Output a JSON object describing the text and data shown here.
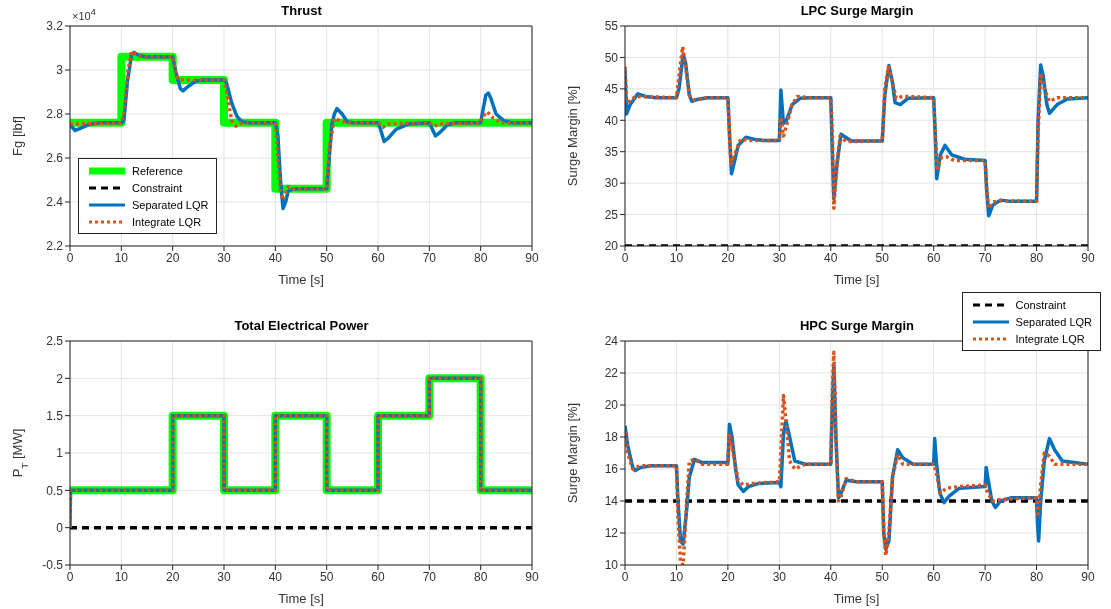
{
  "chart_data": [
    {
      "type": "line",
      "title": "Thrust",
      "xlabel": "Time [s]",
      "ylabel": "Fg   [lbf]",
      "annotations": [
        "×10$^{4}$"
      ],
      "xlim": [
        0,
        90
      ],
      "xticks": [
        0,
        10,
        20,
        30,
        40,
        50,
        60,
        70,
        80,
        90
      ],
      "ylim": [
        2.2,
        3.2
      ],
      "yticks": [
        2.2,
        2.4,
        2.6,
        2.8,
        3,
        3.2
      ],
      "grid": true,
      "legend": "bottom left",
      "series": [
        {
          "name": "Reference",
          "color": "#00ff00",
          "line_style": "solid",
          "x": [
            0,
            10,
            10,
            20,
            20,
            30,
            30,
            40,
            40,
            50,
            50,
            90
          ],
          "values": [
            2.76,
            2.76,
            3.06,
            3.06,
            2.955,
            2.955,
            2.76,
            2.76,
            2.46,
            2.46,
            2.76,
            2.76
          ]
        },
        {
          "name": "Constraint",
          "color": "#000000",
          "line_style": "dashed"
        },
        {
          "name": "Separated LQR",
          "color": "#0072bd",
          "line_style": "solid",
          "x": [
            0,
            1,
            2,
            4,
            6,
            10,
            10.5,
            11.2,
            12,
            12.5,
            13.5,
            15,
            20,
            20.5,
            21.5,
            22,
            23,
            24.5,
            26,
            30,
            30.5,
            31.5,
            32.5,
            33.5,
            35,
            40,
            40.5,
            41,
            41.5,
            42,
            42.5,
            43.5,
            50,
            50.5,
            51,
            51.5,
            52,
            53,
            54,
            55,
            60,
            60.5,
            61.2,
            62,
            63.5,
            66,
            70,
            70.5,
            71.2,
            72,
            73.5,
            75,
            80,
            80.3,
            81,
            81.5,
            82,
            83,
            84.5,
            86,
            90
          ],
          "values": [
            2.75,
            2.725,
            2.735,
            2.755,
            2.76,
            2.76,
            2.77,
            2.95,
            3.07,
            3.08,
            3.065,
            3.06,
            3.06,
            3.0,
            2.915,
            2.905,
            2.925,
            2.95,
            2.955,
            2.955,
            2.94,
            2.85,
            2.79,
            2.765,
            2.76,
            2.76,
            2.7,
            2.5,
            2.37,
            2.4,
            2.45,
            2.46,
            2.46,
            2.6,
            2.75,
            2.8,
            2.825,
            2.8,
            2.765,
            2.76,
            2.76,
            2.73,
            2.675,
            2.69,
            2.73,
            2.755,
            2.76,
            2.735,
            2.7,
            2.715,
            2.75,
            2.76,
            2.76,
            2.8,
            2.885,
            2.895,
            2.87,
            2.8,
            2.77,
            2.76,
            2.76
          ]
        },
        {
          "name": "Integrate LQR",
          "color": "#d95319",
          "line_style": "dotted",
          "x": [
            0,
            1,
            10,
            10.5,
            11.3,
            12,
            13,
            14,
            20,
            20.5,
            21,
            22,
            30,
            30.5,
            31.5,
            32.3,
            33.5,
            40,
            40.5,
            41,
            41.5,
            42.5,
            43.5,
            50,
            50.5,
            51.5,
            52.5,
            54,
            60,
            61,
            62,
            70,
            71,
            72,
            80,
            80.5,
            81.3,
            82.5,
            84,
            90
          ],
          "values": [
            2.755,
            2.755,
            2.76,
            2.8,
            3.0,
            3.085,
            3.07,
            3.06,
            3.06,
            3.0,
            2.96,
            2.955,
            2.955,
            2.9,
            2.77,
            2.745,
            2.76,
            2.76,
            2.6,
            2.45,
            2.41,
            2.47,
            2.46,
            2.46,
            2.65,
            2.78,
            2.77,
            2.76,
            2.76,
            2.74,
            2.755,
            2.76,
            2.745,
            2.755,
            2.76,
            2.79,
            2.81,
            2.78,
            2.76,
            2.76
          ]
        }
      ]
    },
    {
      "type": "line",
      "title": "LPC Surge Margin",
      "xlabel": "Time [s]",
      "ylabel": "Surge Margin [%]",
      "xlim": [
        0,
        90
      ],
      "xticks": [
        0,
        10,
        20,
        30,
        40,
        50,
        60,
        70,
        80,
        90
      ],
      "ylim": [
        20,
        55
      ],
      "yticks": [
        20,
        25,
        30,
        35,
        40,
        45,
        50,
        55
      ],
      "grid": true,
      "series": [
        {
          "color": "#000000",
          "line_style": "dashed",
          "x": [
            0,
            90
          ],
          "values": [
            20,
            20
          ]
        },
        {
          "color": "#0072bd",
          "line_style": "solid",
          "x": [
            0,
            0.3,
            1,
            2.5,
            4,
            6,
            10,
            10.5,
            11.3,
            11.8,
            12.5,
            13,
            14,
            16,
            20,
            20.3,
            20.7,
            21.3,
            22,
            23.5,
            25,
            27,
            30,
            30.3,
            30.8,
            31.3,
            32.5,
            34,
            36,
            40,
            40.3,
            40.6,
            41.2,
            42,
            42.5,
            44,
            50,
            50.5,
            51.3,
            52,
            52.5,
            53.5,
            55,
            60,
            60.3,
            60.6,
            61.3,
            62.2,
            63.5,
            66,
            70,
            70.3,
            70.7,
            71.5,
            73,
            75,
            80,
            80.3,
            80.8,
            81.3,
            82,
            82.5,
            84,
            86,
            90
          ],
          "values": [
            48,
            41,
            42.5,
            44.2,
            43.8,
            43.6,
            43.6,
            45,
            50.5,
            49,
            44,
            43,
            43.3,
            43.6,
            43.6,
            38,
            31.5,
            33.5,
            36,
            37.3,
            37,
            36.8,
            36.8,
            44.8,
            39.5,
            39.8,
            42.5,
            43.5,
            43.6,
            43.6,
            35,
            27.5,
            33,
            37.8,
            37.5,
            36.7,
            36.7,
            44,
            48.7,
            46,
            42.8,
            42.5,
            43.5,
            43.6,
            38,
            30.7,
            34.5,
            36,
            34.5,
            33.8,
            33.6,
            29,
            24.8,
            26.5,
            27.3,
            27.1,
            27.1,
            40,
            48.8,
            47,
            42.5,
            41.1,
            42.5,
            43.4,
            43.6
          ]
        },
        {
          "color": "#d95319",
          "line_style": "dotted",
          "x": [
            0,
            0.3,
            1,
            2,
            10,
            10.5,
            11.2,
            11.7,
            12.5,
            13.5,
            16,
            20,
            20.3,
            20.6,
            21.3,
            22.5,
            24,
            30,
            30.3,
            30.8,
            31.5,
            32.5,
            33.5,
            36,
            40,
            40.3,
            40.6,
            41.2,
            41.8,
            43,
            50,
            50.5,
            51.2,
            52,
            52.7,
            54,
            60,
            60.3,
            60.7,
            61.3,
            62.5,
            64,
            70,
            70.3,
            70.7,
            71.5,
            73,
            80,
            80.3,
            80.8,
            81.5,
            82.5,
            84,
            90
          ],
          "values": [
            48.5,
            43,
            43,
            43.8,
            43.6,
            47,
            51.7,
            49,
            44,
            43.2,
            43.6,
            43.6,
            38,
            33,
            34.5,
            37,
            36.8,
            36.8,
            40.5,
            37.5,
            39.5,
            42.5,
            43.8,
            43.6,
            43.6,
            38,
            26,
            33,
            37.5,
            36.6,
            36.7,
            45,
            48.5,
            46,
            43.5,
            43.8,
            43.6,
            38,
            32,
            34,
            34.2,
            33.6,
            33.6,
            29,
            26,
            27,
            27.2,
            27.1,
            38,
            47.5,
            45,
            43,
            43.6,
            43.6
          ]
        }
      ]
    },
    {
      "type": "line",
      "title": "Total Electrical Power",
      "xlabel": "Time [s]",
      "ylabel": "P$_{T}$   [MW]",
      "xlim": [
        0,
        90
      ],
      "xticks": [
        0,
        10,
        20,
        30,
        40,
        50,
        60,
        70,
        80,
        90
      ],
      "ylim": [
        -0.5,
        2.5
      ],
      "yticks": [
        -0.5,
        0,
        0.5,
        1,
        1.5,
        2,
        2.5
      ],
      "grid": true,
      "series": [
        {
          "color": "#00ff00",
          "line_style": "solid",
          "x": [
            0,
            20,
            20,
            30,
            30,
            40,
            40,
            50,
            50,
            60,
            60,
            70,
            70,
            80,
            80,
            90
          ],
          "values": [
            0.5,
            0.5,
            1.5,
            1.5,
            0.5,
            0.5,
            1.5,
            1.5,
            0.5,
            0.5,
            1.5,
            1.5,
            2,
            2,
            0.5,
            0.5
          ]
        },
        {
          "color": "#000000",
          "line_style": "dashed",
          "x": [
            0,
            90
          ],
          "values": [
            0,
            0
          ]
        },
        {
          "color": "#0072bd",
          "line_style": "solid",
          "x": [
            0,
            0.1,
            20,
            20,
            30,
            30,
            40,
            40,
            50,
            50,
            60,
            60,
            70,
            70,
            80,
            80,
            90
          ],
          "values": [
            0,
            0.5,
            0.5,
            1.5,
            1.5,
            0.5,
            0.5,
            1.5,
            1.5,
            0.5,
            0.5,
            1.5,
            1.5,
            2,
            2,
            0.5,
            0.5
          ]
        },
        {
          "color": "#d95319",
          "line_style": "dotted",
          "x": [
            0,
            0.1,
            20,
            20,
            30,
            30,
            40,
            40,
            50,
            50,
            60,
            60,
            70,
            70,
            80,
            80,
            90
          ],
          "values": [
            0,
            0.5,
            0.5,
            1.5,
            1.5,
            0.5,
            0.5,
            1.5,
            1.5,
            0.5,
            0.5,
            1.5,
            1.5,
            2,
            2,
            0.5,
            0.5
          ]
        }
      ]
    },
    {
      "type": "line",
      "title": "HPC Surge Margin",
      "xlabel": "Time [s]",
      "ylabel": "Surge Margin [%]",
      "xlim": [
        0,
        90
      ],
      "xticks": [
        0,
        10,
        20,
        30,
        40,
        50,
        60,
        70,
        80,
        90
      ],
      "ylim": [
        10,
        24
      ],
      "yticks": [
        10,
        12,
        14,
        16,
        18,
        20,
        22,
        24
      ],
      "grid": true,
      "legend": "top right",
      "series": [
        {
          "name": "Constraint",
          "color": "#000000",
          "line_style": "dashed",
          "x": [
            0,
            90
          ],
          "values": [
            14,
            14
          ]
        },
        {
          "name": "Separated LQR",
          "color": "#0072bd",
          "line_style": "solid",
          "x": [
            0,
            0.5,
            1.5,
            2,
            3,
            5,
            10,
            10.3,
            10.8,
            11.3,
            12,
            12.5,
            13.5,
            15,
            20,
            20.3,
            20.8,
            21.5,
            22,
            23,
            24,
            26,
            30,
            30.3,
            30.8,
            31.3,
            32,
            33,
            35,
            40,
            40.3,
            40.6,
            41,
            41.5,
            42,
            43,
            45,
            50,
            50.3,
            50.7,
            51.3,
            52,
            53,
            54,
            56,
            60,
            60.2,
            60.5,
            61.2,
            62,
            63,
            65,
            70,
            70.2,
            70.5,
            71.3,
            72,
            73,
            75,
            80,
            80.2,
            80.4,
            80.8,
            81.5,
            82.5,
            83.5,
            85,
            90
          ],
          "values": [
            18.7,
            17.5,
            16.1,
            15.9,
            16.1,
            16.2,
            16.2,
            14,
            11.5,
            11.3,
            13.5,
            15.5,
            16.6,
            16.4,
            16.4,
            18.8,
            18,
            16,
            15,
            14.6,
            14.9,
            15.1,
            15.15,
            14.9,
            18.2,
            19,
            18,
            16.5,
            16.3,
            16.3,
            20,
            22.5,
            18,
            14.2,
            14.5,
            15.3,
            15.2,
            15.2,
            12,
            11,
            11.5,
            15.5,
            17.2,
            16.7,
            16.3,
            16.3,
            17.9,
            16.5,
            14.5,
            13.9,
            14.3,
            14.8,
            14.9,
            16.1,
            15.5,
            14,
            13.6,
            14,
            14.2,
            14.2,
            12.5,
            11.5,
            14,
            16.5,
            17.9,
            17.2,
            16.5,
            16.3
          ]
        },
        {
          "name": "Integrate LQR",
          "color": "#d95319",
          "line_style": "dotted",
          "x": [
            0,
            0.5,
            1.5,
            3,
            10,
            10.3,
            10.8,
            11.3,
            12,
            12.5,
            13.5,
            15,
            20,
            20.3,
            21,
            22,
            23,
            25,
            30,
            30.3,
            30.8,
            31.3,
            32,
            33,
            35,
            40,
            40.3,
            40.6,
            41,
            41.5,
            42,
            43,
            45,
            50,
            50.3,
            50.7,
            51.3,
            52,
            53,
            54,
            60,
            60.5,
            61.3,
            62.5,
            65,
            70,
            70.5,
            71.5,
            73,
            80,
            80.3,
            80.8,
            81.5,
            82.5,
            83.5,
            90
          ],
          "values": [
            18.3,
            17,
            16,
            16.2,
            16.2,
            13,
            10.2,
            10,
            14,
            16.5,
            16.6,
            16.3,
            16.3,
            18.2,
            17,
            15.3,
            15,
            15.1,
            15.2,
            17,
            20.6,
            19,
            16.5,
            16,
            16.3,
            16.3,
            21,
            23.3,
            18,
            14,
            14.3,
            15.4,
            15.2,
            15.2,
            12,
            10.6,
            12,
            15.5,
            16.9,
            16.3,
            16.3,
            15.8,
            14.5,
            14.8,
            14.9,
            15,
            14.5,
            14,
            14.1,
            14.2,
            13,
            15,
            17,
            16.8,
            16.3,
            16.3
          ]
        }
      ]
    }
  ]
}
